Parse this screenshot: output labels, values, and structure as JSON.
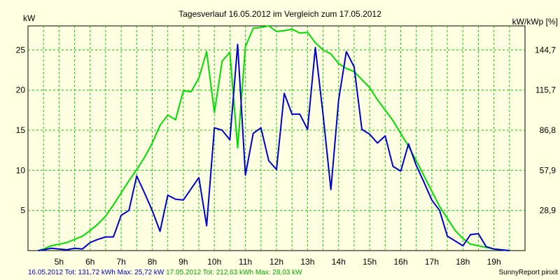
{
  "chart_data": {
    "type": "line",
    "title": "Tagesverlauf 16.05.2012 im Vergleich zum 17.05.2012",
    "ylabel_left": "kW",
    "ylabel_right": "kW/kWp [%]",
    "ylim": [
      0,
      28
    ],
    "xlim": [
      4,
      20
    ],
    "grid": true,
    "x_ticks": [
      {
        "x": 5,
        "label": "5h"
      },
      {
        "x": 6,
        "label": "6h"
      },
      {
        "x": 7,
        "label": "7h"
      },
      {
        "x": 8,
        "label": "8h"
      },
      {
        "x": 9,
        "label": "9h"
      },
      {
        "x": 10,
        "label": "10h"
      },
      {
        "x": 11,
        "label": "11h"
      },
      {
        "x": 12,
        "label": "12h"
      },
      {
        "x": 13,
        "label": "13h"
      },
      {
        "x": 14,
        "label": "14h"
      },
      {
        "x": 15,
        "label": "15h"
      },
      {
        "x": 16,
        "label": "16h"
      },
      {
        "x": 17,
        "label": "17h"
      },
      {
        "x": 18,
        "label": "18h"
      },
      {
        "x": 19,
        "label": "19h"
      }
    ],
    "y_ticks_left": [
      {
        "y": 5,
        "label": "5"
      },
      {
        "y": 10,
        "label": "10"
      },
      {
        "y": 15,
        "label": "15"
      },
      {
        "y": 20,
        "label": "20"
      },
      {
        "y": 25,
        "label": "25"
      }
    ],
    "y_ticks_right": [
      {
        "y": 5,
        "label": "28,9"
      },
      {
        "y": 10,
        "label": "57,9"
      },
      {
        "y": 15,
        "label": "86,8"
      },
      {
        "y": 20,
        "label": "115,7"
      },
      {
        "y": 25,
        "label": "144,7"
      }
    ],
    "series": [
      {
        "color": "#0000cc",
        "x": [
          4.33,
          4.5,
          4.75,
          5.0,
          5.25,
          5.5,
          5.75,
          6.0,
          6.25,
          6.5,
          6.75,
          7.0,
          7.25,
          7.5,
          7.75,
          8.0,
          8.25,
          8.5,
          8.75,
          9.0,
          9.25,
          9.5,
          9.75,
          10.0,
          10.25,
          10.5,
          10.75,
          11.0,
          11.25,
          11.5,
          11.75,
          12.0,
          12.25,
          12.5,
          12.75,
          13.0,
          13.25,
          13.5,
          13.75,
          14.0,
          14.25,
          14.5,
          14.75,
          15.0,
          15.25,
          15.5,
          15.75,
          16.0,
          16.25,
          16.5,
          16.75,
          17.0,
          17.25,
          17.5,
          17.75,
          18.0,
          18.25,
          18.5,
          18.75,
          19.0,
          19.25,
          19.5
        ],
        "values": [
          0,
          0.1,
          0.3,
          0.2,
          0.1,
          0.3,
          0.2,
          1.0,
          1.4,
          1.7,
          1.7,
          4.4,
          5.0,
          9.3,
          7.2,
          5.0,
          2.4,
          6.9,
          6.4,
          6.3,
          7.7,
          9.1,
          3.1,
          15.3,
          15.0,
          13.8,
          25.7,
          9.4,
          14.6,
          15.3,
          11.2,
          10.1,
          19.6,
          17.0,
          17.0,
          15.1,
          25.3,
          16.9,
          7.6,
          18.8,
          24.8,
          22.9,
          15.1,
          14.5,
          13.4,
          14.3,
          10.5,
          9.9,
          13.3,
          10.6,
          8.5,
          6.3,
          5.0,
          1.8,
          1.2,
          0.6,
          2.0,
          2.1,
          0.5,
          0.2,
          0.1,
          0
        ]
      },
      {
        "color": "#00dd00",
        "x": [
          4.33,
          4.5,
          4.75,
          5.0,
          5.25,
          5.5,
          5.75,
          6.0,
          6.25,
          6.5,
          6.75,
          7.0,
          7.25,
          7.5,
          7.75,
          8.0,
          8.25,
          8.5,
          8.75,
          9.0,
          9.25,
          9.5,
          9.75,
          10.0,
          10.25,
          10.5,
          10.75,
          11.0,
          11.25,
          11.5,
          11.75,
          12.0,
          12.25,
          12.5,
          12.75,
          13.0,
          13.25,
          13.5,
          13.75,
          14.0,
          14.25,
          14.5,
          14.75,
          15.0,
          15.25,
          15.5,
          15.75,
          16.0,
          16.25,
          16.5,
          16.75,
          17.0,
          17.25,
          17.5,
          17.75,
          18.0,
          18.25,
          18.5,
          18.75,
          19.0,
          19.25,
          19.5
        ],
        "values": [
          0,
          0.2,
          0.6,
          0.8,
          1.0,
          1.4,
          1.8,
          2.5,
          3.3,
          4.3,
          5.7,
          7.2,
          8.7,
          10.1,
          11.6,
          13.4,
          15.6,
          16.9,
          16.3,
          19.9,
          19.8,
          21.5,
          24.8,
          17.2,
          23.6,
          24.7,
          12.8,
          25.4,
          27.7,
          27.8,
          28.0,
          27.3,
          27.4,
          27.6,
          27.1,
          27.2,
          25.9,
          25.0,
          24.5,
          23.3,
          22.7,
          22.3,
          21.3,
          20.3,
          18.8,
          17.5,
          16.2,
          14.6,
          13.0,
          11.2,
          9.3,
          7.4,
          5.5,
          4.0,
          2.5,
          1.5,
          0.8,
          0.6,
          0.4,
          0.2,
          0.1,
          0
        ]
      }
    ],
    "footer": [
      {
        "text": "16.05.2012 Tot: 131,72 kWh Max: 25,72 kW",
        "color": "#0000cc"
      },
      {
        "text": " 17.05.2012 Tot: 212,63 kWh Max: 28,03 kW",
        "color": "#00aa00"
      }
    ],
    "credit": "SunnyReport pinxit"
  }
}
